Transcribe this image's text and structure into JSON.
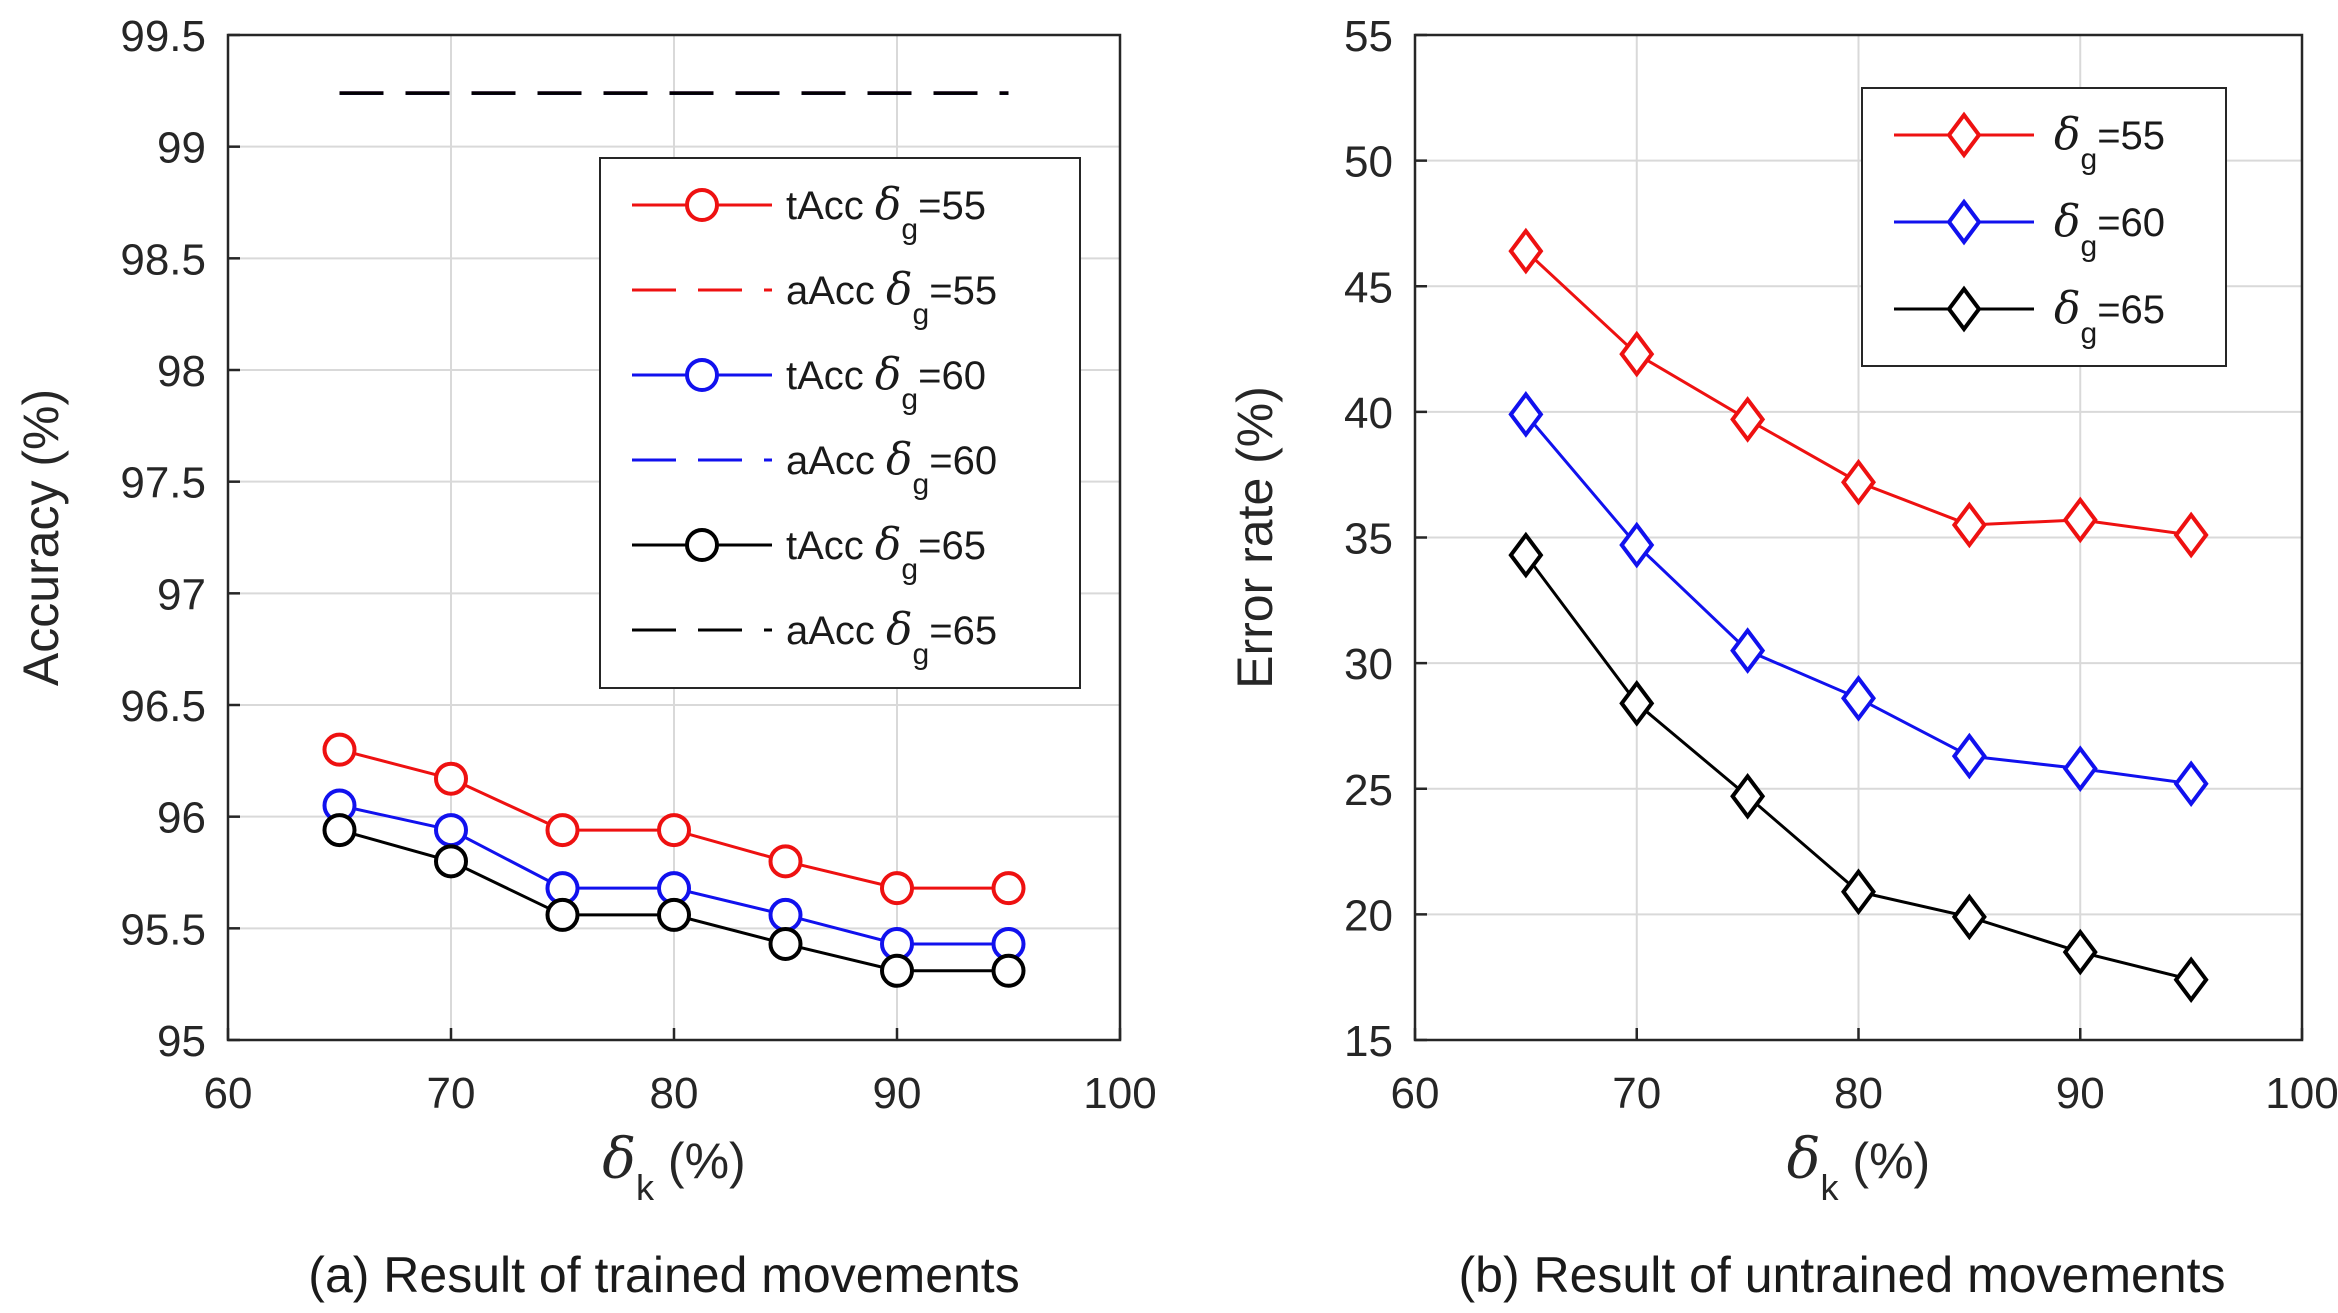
{
  "chart_data": [
    {
      "type": "line",
      "title": "",
      "caption": "(a) Result of trained movements",
      "xlabel_symbol": "δ",
      "xlabel_sub": "k",
      "xlabel_unit": "(%)",
      "ylabel": "Accuracy (%)",
      "xlim": [
        60,
        100
      ],
      "ylim": [
        95,
        99.5
      ],
      "xticks": [
        "60",
        "70",
        "80",
        "90",
        "100"
      ],
      "yticks": [
        "95",
        "95.5",
        "96",
        "96.5",
        "97",
        "97.5",
        "98",
        "98.5",
        "99",
        "99.5"
      ],
      "grid": true,
      "legend_position": "top-right",
      "x": [
        65,
        70,
        75,
        80,
        85,
        90,
        95
      ],
      "series": [
        {
          "name": "tAcc",
          "delta_g": "55",
          "color": "#ee1111",
          "style": "solid",
          "marker": "circle",
          "values": [
            96.3,
            96.17,
            95.94,
            95.94,
            95.8,
            95.68,
            95.68
          ]
        },
        {
          "name": "aAcc",
          "delta_g": "55",
          "color": "#ee1111",
          "style": "dashed",
          "marker": "none",
          "values": [
            99.24,
            99.24,
            99.24,
            99.24,
            99.24,
            99.24,
            99.24
          ]
        },
        {
          "name": "tAcc",
          "delta_g": "60",
          "color": "#1111ee",
          "style": "solid",
          "marker": "circle",
          "values": [
            96.05,
            95.94,
            95.68,
            95.68,
            95.56,
            95.43,
            95.43
          ]
        },
        {
          "name": "aAcc",
          "delta_g": "60",
          "color": "#1111ee",
          "style": "dashed",
          "marker": "none",
          "values": [
            99.24,
            99.24,
            99.24,
            99.24,
            99.24,
            99.24,
            99.24
          ]
        },
        {
          "name": "tAcc",
          "delta_g": "65",
          "color": "#000000",
          "style": "solid",
          "marker": "circle",
          "values": [
            95.94,
            95.8,
            95.56,
            95.56,
            95.43,
            95.31,
            95.31
          ]
        },
        {
          "name": "aAcc",
          "delta_g": "65",
          "color": "#000000",
          "style": "dashed",
          "marker": "none",
          "values": [
            99.24,
            99.24,
            99.24,
            99.24,
            99.24,
            99.24,
            99.24
          ]
        }
      ]
    },
    {
      "type": "line",
      "title": "",
      "caption": "(b) Result of untrained movements",
      "xlabel_symbol": "δ",
      "xlabel_sub": "k",
      "xlabel_unit": "(%)",
      "ylabel": "Error rate (%)",
      "xlim": [
        60,
        100
      ],
      "ylim": [
        15,
        55
      ],
      "xticks": [
        "60",
        "70",
        "80",
        "90",
        "100"
      ],
      "yticks": [
        "15",
        "20",
        "25",
        "30",
        "35",
        "40",
        "45",
        "50",
        "55"
      ],
      "grid": true,
      "legend_position": "top-right",
      "x": [
        65,
        70,
        75,
        80,
        85,
        90,
        95
      ],
      "series": [
        {
          "name": "",
          "delta_g": "55",
          "color": "#ee1111",
          "style": "solid",
          "marker": "diamond",
          "values": [
            46.4,
            42.3,
            39.7,
            37.2,
            35.5,
            35.7,
            35.1
          ]
        },
        {
          "name": "",
          "delta_g": "60",
          "color": "#1111ee",
          "style": "solid",
          "marker": "diamond",
          "values": [
            39.9,
            34.7,
            30.5,
            28.6,
            26.3,
            25.8,
            25.2
          ]
        },
        {
          "name": "",
          "delta_g": "65",
          "color": "#000000",
          "style": "solid",
          "marker": "diamond",
          "values": [
            34.3,
            28.4,
            24.7,
            20.9,
            19.9,
            18.5,
            17.4
          ]
        }
      ]
    }
  ]
}
